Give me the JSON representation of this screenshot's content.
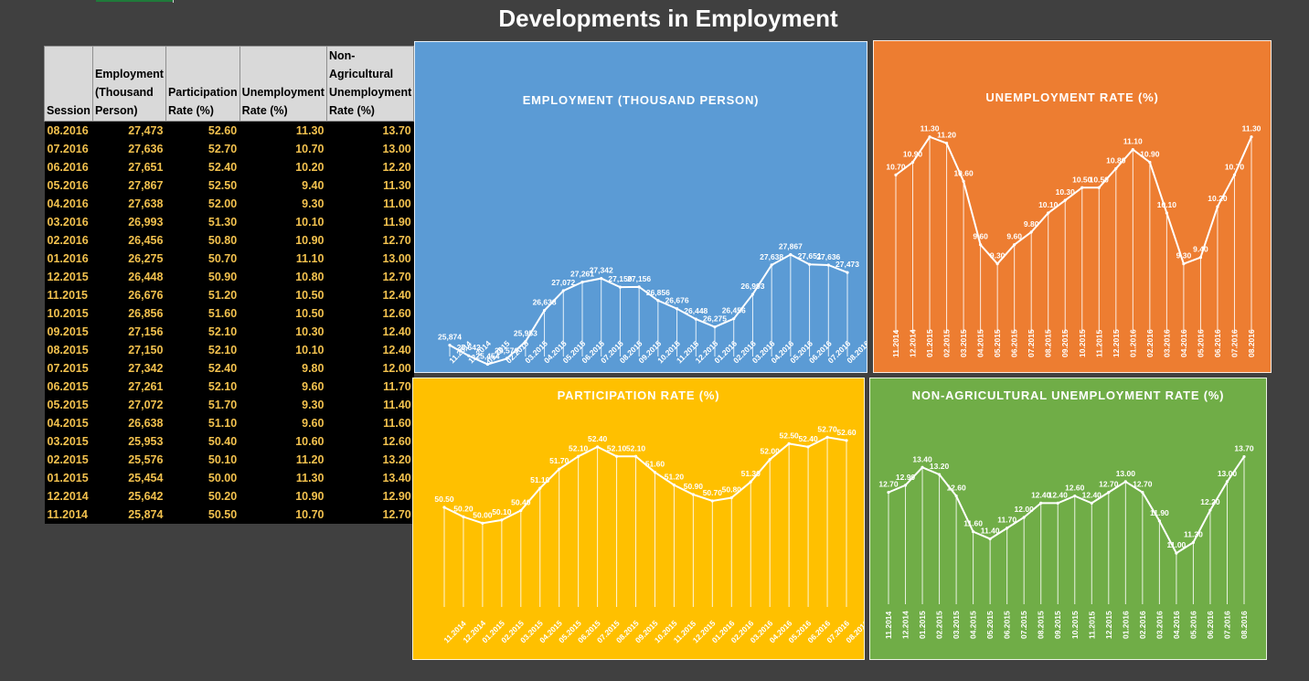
{
  "page": {
    "title": "Developments in Employment"
  },
  "table": {
    "headers": [
      "Session",
      "Employment (Thousand Person)",
      "Participation Rate (%)",
      "Unemployment Rate (%)",
      "Non-Agricultural Unemployment Rate (%)"
    ],
    "rows": [
      [
        "08.2016",
        "27,473",
        "52.60",
        "11.30",
        "13.70"
      ],
      [
        "07.2016",
        "27,636",
        "52.70",
        "10.70",
        "13.00"
      ],
      [
        "06.2016",
        "27,651",
        "52.40",
        "10.20",
        "12.20"
      ],
      [
        "05.2016",
        "27,867",
        "52.50",
        "9.40",
        "11.30"
      ],
      [
        "04.2016",
        "27,638",
        "52.00",
        "9.30",
        "11.00"
      ],
      [
        "03.2016",
        "26,993",
        "51.30",
        "10.10",
        "11.90"
      ],
      [
        "02.2016",
        "26,456",
        "50.80",
        "10.90",
        "12.70"
      ],
      [
        "01.2016",
        "26,275",
        "50.70",
        "11.10",
        "13.00"
      ],
      [
        "12.2015",
        "26,448",
        "50.90",
        "10.80",
        "12.70"
      ],
      [
        "11.2015",
        "26,676",
        "51.20",
        "10.50",
        "12.40"
      ],
      [
        "10.2015",
        "26,856",
        "51.60",
        "10.50",
        "12.60"
      ],
      [
        "09.2015",
        "27,156",
        "52.10",
        "10.30",
        "12.40"
      ],
      [
        "08.2015",
        "27,150",
        "52.10",
        "10.10",
        "12.40"
      ],
      [
        "07.2015",
        "27,342",
        "52.40",
        "9.80",
        "12.00"
      ],
      [
        "06.2015",
        "27,261",
        "52.10",
        "9.60",
        "11.70"
      ],
      [
        "05.2015",
        "27,072",
        "51.70",
        "9.30",
        "11.40"
      ],
      [
        "04.2015",
        "26,638",
        "51.10",
        "9.60",
        "11.60"
      ],
      [
        "03.2015",
        "25,953",
        "50.40",
        "10.60",
        "12.60"
      ],
      [
        "02.2015",
        "25,576",
        "50.10",
        "11.20",
        "13.20"
      ],
      [
        "01.2015",
        "25,454",
        "50.00",
        "11.30",
        "13.40"
      ],
      [
        "12.2014",
        "25,642",
        "50.20",
        "10.90",
        "12.90"
      ],
      [
        "11.2014",
        "25,874",
        "50.50",
        "10.70",
        "12.70"
      ]
    ]
  },
  "chart_data": [
    {
      "type": "line",
      "title": "EMPLOYMENT (THOUSAND PERSON)",
      "color": "#5b9bd5",
      "decimals": 0,
      "ylim": [
        24500,
        28600
      ],
      "categories": [
        "11.2014",
        "12.2014",
        "01.2015",
        "02.2015",
        "03.2015",
        "04.2015",
        "05.2015",
        "06.2015",
        "07.2015",
        "08.2015",
        "09.2015",
        "10.2015",
        "11.2015",
        "12.2015",
        "01.2016",
        "02.2016",
        "03.2016",
        "04.2016",
        "05.2016",
        "06.2016",
        "07.2016",
        "08.2016"
      ],
      "values": [
        25874,
        25642,
        25454,
        25576,
        25953,
        26638,
        27072,
        27261,
        27342,
        27150,
        27156,
        26856,
        26676,
        26448,
        26275,
        26456,
        26993,
        27638,
        27867,
        27651,
        27636,
        27473
      ]
    },
    {
      "type": "line",
      "title": "UNEMPLOYMENT RATE (%)",
      "color": "#ed7d31",
      "decimals": 2,
      "ylim": [
        8.3,
        11.8
      ],
      "categories": [
        "11.2014",
        "12.2014",
        "01.2015",
        "02.2015",
        "03.2015",
        "04.2015",
        "05.2015",
        "06.2015",
        "07.2015",
        "08.2015",
        "09.2015",
        "10.2015",
        "11.2015",
        "12.2015",
        "01.2016",
        "02.2016",
        "03.2016",
        "04.2016",
        "05.2016",
        "06.2016",
        "07.2016",
        "08.2016"
      ],
      "values": [
        10.7,
        10.9,
        11.3,
        11.2,
        10.6,
        9.6,
        9.3,
        9.6,
        9.8,
        10.1,
        10.3,
        10.5,
        10.5,
        10.8,
        11.1,
        10.9,
        10.1,
        9.3,
        9.4,
        10.2,
        10.7,
        11.3
      ]
    },
    {
      "type": "line",
      "title": "PARTICIPATION RATE (%)",
      "color": "#ffc000",
      "decimals": 2,
      "ylim": [
        48.0,
        53.4
      ],
      "categories": [
        "11.2014",
        "12.2014",
        "01.2015",
        "02.2015",
        "03.2015",
        "04.2015",
        "05.2015",
        "06.2015",
        "07.2015",
        "08.2015",
        "09.2015",
        "10.2015",
        "11.2015",
        "12.2015",
        "01.2016",
        "02.2016",
        "03.2016",
        "04.2016",
        "05.2016",
        "06.2016",
        "07.2016",
        "08.2016"
      ],
      "values": [
        50.5,
        50.2,
        50.0,
        50.1,
        50.4,
        51.1,
        51.7,
        52.1,
        52.4,
        52.1,
        52.1,
        51.6,
        51.2,
        50.9,
        50.7,
        50.8,
        51.3,
        52.0,
        52.5,
        52.4,
        52.7,
        52.6
      ]
    },
    {
      "type": "line",
      "title": "NON-AGRICULTURAL UNEMPLOYMENT RATE (%)",
      "color": "#70ad47",
      "decimals": 2,
      "ylim": [
        9.8,
        14.2
      ],
      "categories": [
        "11.2014",
        "12.2014",
        "01.2015",
        "02.2015",
        "03.2015",
        "04.2015",
        "05.2015",
        "06.2015",
        "07.2015",
        "08.2015",
        "09.2015",
        "10.2015",
        "11.2015",
        "12.2015",
        "01.2016",
        "02.2016",
        "03.2016",
        "04.2016",
        "05.2016",
        "06.2016",
        "07.2016",
        "08.2016"
      ],
      "values": [
        12.7,
        12.9,
        13.4,
        13.2,
        12.6,
        11.6,
        11.4,
        11.7,
        12.0,
        12.4,
        12.4,
        12.6,
        12.4,
        12.7,
        13.0,
        12.7,
        11.9,
        11.0,
        11.3,
        12.2,
        13.0,
        13.7
      ]
    }
  ]
}
